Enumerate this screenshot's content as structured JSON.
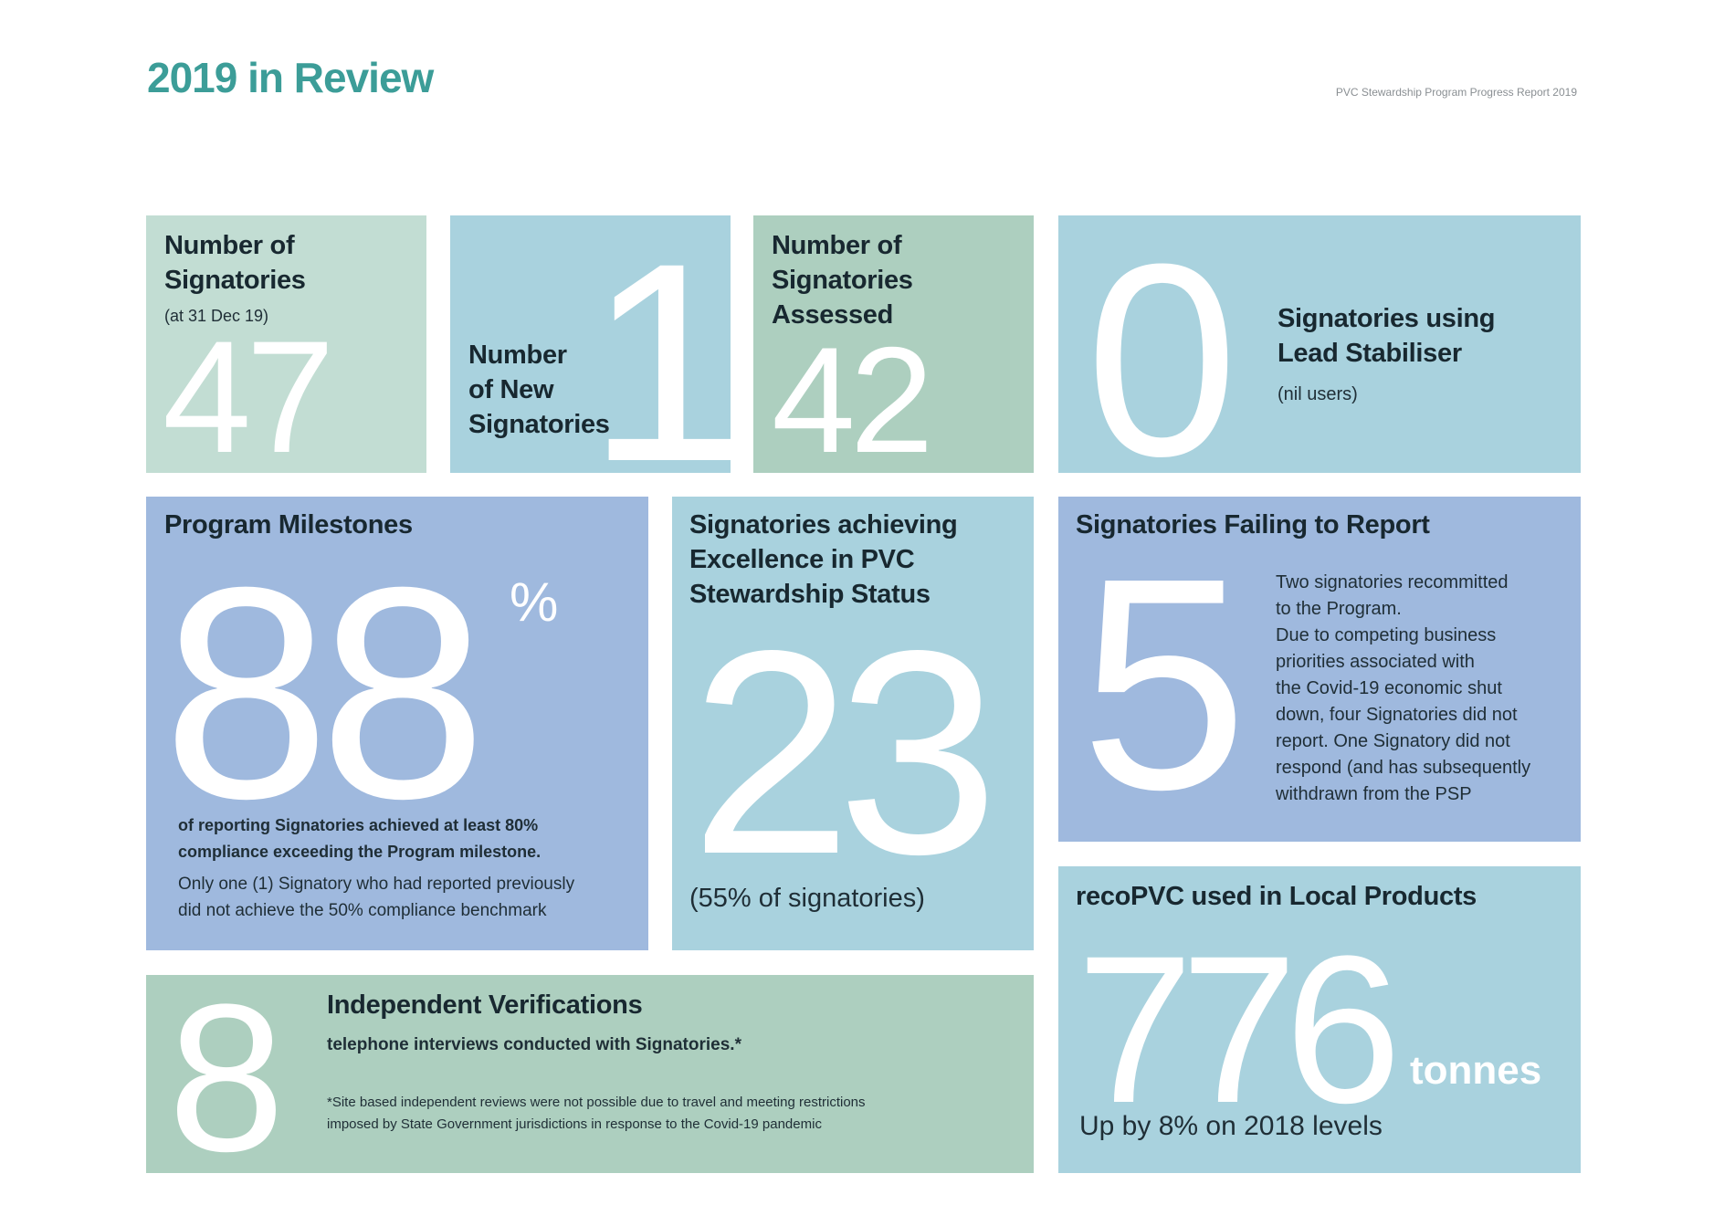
{
  "header": {
    "title": "2019 in Review",
    "report_name": "PVC Stewardship Program Progress Report 2019"
  },
  "colors": {
    "title": "#3c9d98",
    "mint": "#c2ddd3",
    "sky": "#a9d2de",
    "sage": "#adcfbf",
    "periwinkle": "#9fb9de"
  },
  "tiles": {
    "signatories": {
      "heading_line1": "Number of",
      "heading_line2": "Signatories",
      "note": "(at 31 Dec 19)",
      "value": "47"
    },
    "new_signatories": {
      "heading_line1": "Number",
      "heading_line2": "of New",
      "heading_line3": "Signatories",
      "value": "1"
    },
    "assessed": {
      "heading_line1": "Number of",
      "heading_line2": "Signatories",
      "heading_line3": "Assessed",
      "value": "42"
    },
    "lead": {
      "value": "0",
      "heading_line1": "Signatories using",
      "heading_line2": "Lead Stabiliser",
      "note": "(nil users)"
    },
    "milestones": {
      "heading": "Program Milestones",
      "value": "88",
      "unit": "%",
      "text_bold_line1": "of reporting Signatories achieved at least 80%",
      "text_bold_line2": "compliance exceeding the Program milestone.",
      "text_line1": "Only one (1) Signatory who had reported previously",
      "text_line2": "did not achieve the 50% compliance benchmark"
    },
    "excellence": {
      "heading_line1": "Signatories achieving",
      "heading_line2": "Excellence in PVC",
      "heading_line3": "Stewardship Status",
      "value": "23",
      "note": "(55% of signatories)"
    },
    "failing": {
      "heading": "Signatories Failing to Report",
      "value": "5",
      "lines": [
        "Two signatories recommitted",
        "to the Program.",
        "Due to competing business",
        "priorities associated with",
        "the Covid-19 economic shut",
        "down, four Signatories did not",
        "report. One Signatory did not",
        "respond (and has subsequently",
        "withdrawn from the PSP"
      ]
    },
    "verifications": {
      "value": "8",
      "heading": "Independent Verifications",
      "subheading": "telephone interviews conducted with Signatories.*",
      "footnote_line1": "*Site based independent reviews were not possible due to travel and meeting restrictions",
      "footnote_line2": "imposed by State Government jurisdictions in response to the Covid-19 pandemic"
    },
    "recopvc": {
      "heading": "recoPVC used in Local Products",
      "value": "776",
      "unit": "tonnes",
      "note": "Up by 8% on 2018 levels"
    }
  }
}
